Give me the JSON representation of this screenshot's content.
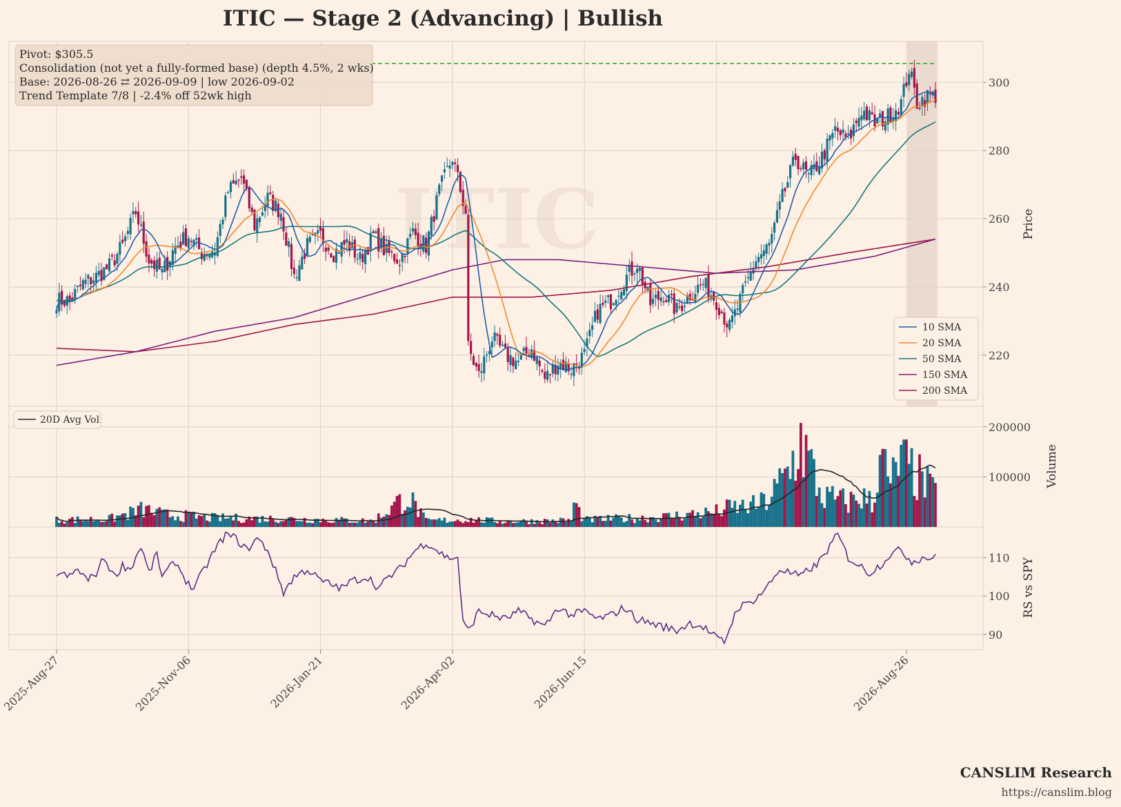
{
  "title": "ITIC  —  Stage 2 (Advancing)  |  Bullish",
  "watermark": "ITIC",
  "info_box": {
    "lines": [
      "Pivot: $305.5",
      "Consolidation (not yet a fully-formed base)  (depth 4.5%, 2 wks)",
      "Base: 2026-08-26 ⇄ 2026-09-09  |  low 2026-09-02",
      "Trend Template 7/8  |  -2.4% off 52wk high"
    ]
  },
  "footer": {
    "brand": "CANSLIM Research",
    "url": "https://canslim.blog"
  },
  "colors": {
    "background": "#fdf1e6",
    "grid": "#e3d5c8",
    "up_candle": "#17718a",
    "down_candle": "#a3164a",
    "sma10": "#1f5ea8",
    "sma20": "#f0892e",
    "sma50": "#14777a",
    "sma150": "#7b1d7e",
    "sma200": "#9a1542",
    "pivot_line": "#2ca02c",
    "rs_line": "#5a2d82",
    "avg_vol": "#222222",
    "base_shade": "#e4d3c6"
  },
  "chart_data": [
    {
      "type": "candlestick",
      "panel": "price",
      "ylabel": "Price",
      "yticks": [
        220,
        240,
        260,
        280,
        300
      ],
      "ylim": [
        205,
        312
      ],
      "x_tick_labels": [
        "2025-Aug-27",
        "2025-Nov-06",
        "2026-Jan-21",
        "2026-Apr-02",
        "2026-Jun-15",
        "2026-Aug-26"
      ],
      "pivot": 305.5,
      "base_window": [
        "2026-08-26",
        "2026-09-09"
      ],
      "legend": [
        "10 SMA",
        "20 SMA",
        "50 SMA",
        "150 SMA",
        "200 SMA"
      ],
      "close_anchors": [
        [
          0,
          236
        ],
        [
          5,
          236
        ],
        [
          10,
          241
        ],
        [
          15,
          243
        ],
        [
          20,
          246
        ],
        [
          25,
          252
        ],
        [
          30,
          262
        ],
        [
          35,
          248
        ],
        [
          40,
          244
        ],
        [
          45,
          252
        ],
        [
          50,
          255
        ],
        [
          55,
          250
        ],
        [
          60,
          251
        ],
        [
          65,
          268
        ],
        [
          70,
          272
        ],
        [
          75,
          258
        ],
        [
          80,
          266
        ],
        [
          85,
          262
        ],
        [
          90,
          243
        ],
        [
          95,
          252
        ],
        [
          100,
          255
        ],
        [
          105,
          250
        ],
        [
          110,
          253
        ],
        [
          115,
          248
        ],
        [
          120,
          255
        ],
        [
          125,
          250
        ],
        [
          130,
          248
        ],
        [
          135,
          256
        ],
        [
          140,
          252
        ],
        [
          145,
          268
        ],
        [
          150,
          278
        ],
        [
          155,
          262
        ],
        [
          156,
          222
        ],
        [
          160,
          214
        ],
        [
          165,
          225
        ],
        [
          170,
          220
        ],
        [
          175,
          218
        ],
        [
          180,
          222
        ],
        [
          185,
          213
        ],
        [
          190,
          218
        ],
        [
          195,
          216
        ],
        [
          200,
          220
        ],
        [
          205,
          233
        ],
        [
          210,
          236
        ],
        [
          215,
          242
        ],
        [
          220,
          247
        ],
        [
          225,
          235
        ],
        [
          230,
          238
        ],
        [
          235,
          233
        ],
        [
          240,
          238
        ],
        [
          245,
          241
        ],
        [
          250,
          236
        ],
        [
          255,
          228
        ],
        [
          260,
          238
        ],
        [
          265,
          248
        ],
        [
          270,
          252
        ],
        [
          275,
          266
        ],
        [
          280,
          278
        ],
        [
          285,
          272
        ],
        [
          290,
          278
        ],
        [
          295,
          286
        ],
        [
          300,
          283
        ],
        [
          305,
          292
        ],
        [
          310,
          288
        ],
        [
          315,
          290
        ],
        [
          320,
          294
        ],
        [
          323,
          304
        ],
        [
          326,
          294
        ],
        [
          330,
          296
        ],
        [
          333,
          296
        ]
      ],
      "sma150_anchors": [
        [
          0,
          217
        ],
        [
          30,
          221
        ],
        [
          60,
          227
        ],
        [
          90,
          231
        ],
        [
          120,
          238
        ],
        [
          150,
          245
        ],
        [
          170,
          248
        ],
        [
          190,
          248
        ],
        [
          220,
          246
        ],
        [
          250,
          244
        ],
        [
          280,
          245
        ],
        [
          310,
          249
        ],
        [
          333,
          254
        ]
      ],
      "sma200_anchors": [
        [
          0,
          222
        ],
        [
          30,
          221
        ],
        [
          60,
          224
        ],
        [
          90,
          229
        ],
        [
          120,
          232
        ],
        [
          150,
          237
        ],
        [
          180,
          237
        ],
        [
          210,
          239
        ],
        [
          240,
          243
        ],
        [
          270,
          246
        ],
        [
          300,
          250
        ],
        [
          333,
          254
        ]
      ]
    },
    {
      "type": "bar",
      "panel": "volume",
      "ylabel": "Volume",
      "yticks": [
        100000,
        200000
      ],
      "ylim": [
        0,
        230000
      ],
      "legend": [
        "20D Avg Vol"
      ],
      "volume_anchors": [
        [
          0,
          14000
        ],
        [
          20,
          16000
        ],
        [
          33,
          35000
        ],
        [
          40,
          25000
        ],
        [
          60,
          18000
        ],
        [
          90,
          16000
        ],
        [
          120,
          12000
        ],
        [
          133,
          62000
        ],
        [
          140,
          12000
        ],
        [
          155,
          15000
        ],
        [
          170,
          11000
        ],
        [
          195,
          13000
        ],
        [
          195,
          55000
        ],
        [
          200,
          14000
        ],
        [
          230,
          20000
        ],
        [
          250,
          30000
        ],
        [
          255,
          38000
        ],
        [
          265,
          42000
        ],
        [
          270,
          55000
        ],
        [
          278,
          115000
        ],
        [
          282,
          175000
        ],
        [
          290,
          60000
        ],
        [
          300,
          50000
        ],
        [
          305,
          60000
        ],
        [
          310,
          45000
        ],
        [
          312,
          210000
        ],
        [
          315,
          75000
        ],
        [
          320,
          130000
        ],
        [
          325,
          105000
        ],
        [
          333,
          65000
        ]
      ]
    },
    {
      "type": "line",
      "panel": "relative_strength",
      "ylabel": "RS vs SPY",
      "yticks": [
        90,
        100,
        110
      ],
      "ylim": [
        86,
        118
      ],
      "rs_anchors": [
        [
          0,
          106
        ],
        [
          5,
          105
        ],
        [
          8,
          107
        ],
        [
          12,
          104
        ],
        [
          15,
          106
        ],
        [
          18,
          110
        ],
        [
          22,
          105
        ],
        [
          25,
          108
        ],
        [
          28,
          107
        ],
        [
          32,
          113
        ],
        [
          35,
          106
        ],
        [
          38,
          111
        ],
        [
          40,
          105
        ],
        [
          45,
          109
        ],
        [
          50,
          103
        ],
        [
          52,
          102
        ],
        [
          60,
          112
        ],
        [
          64,
          116
        ],
        [
          68,
          115
        ],
        [
          72,
          112
        ],
        [
          76,
          115
        ],
        [
          80,
          112
        ],
        [
          86,
          101
        ],
        [
          90,
          105
        ],
        [
          95,
          107
        ],
        [
          100,
          104
        ],
        [
          104,
          103
        ],
        [
          108,
          102
        ],
        [
          112,
          104
        ],
        [
          118,
          105
        ],
        [
          122,
          102
        ],
        [
          126,
          105
        ],
        [
          130,
          107
        ],
        [
          136,
          112
        ],
        [
          140,
          114
        ],
        [
          144,
          112
        ],
        [
          148,
          110
        ],
        [
          152,
          110
        ],
        [
          154,
          93
        ],
        [
          156,
          91
        ],
        [
          160,
          96
        ],
        [
          165,
          95
        ],
        [
          170,
          94
        ],
        [
          175,
          96
        ],
        [
          180,
          94
        ],
        [
          185,
          92
        ],
        [
          190,
          97
        ],
        [
          195,
          95
        ],
        [
          200,
          96
        ],
        [
          205,
          94
        ],
        [
          210,
          95
        ],
        [
          215,
          97
        ],
        [
          220,
          94
        ],
        [
          225,
          93
        ],
        [
          230,
          92
        ],
        [
          235,
          91
        ],
        [
          240,
          93
        ],
        [
          245,
          92
        ],
        [
          250,
          89
        ],
        [
          253,
          88
        ],
        [
          258,
          97
        ],
        [
          262,
          98
        ],
        [
          266,
          100
        ],
        [
          270,
          103
        ],
        [
          274,
          107
        ],
        [
          278,
          106
        ],
        [
          282,
          105
        ],
        [
          285,
          107
        ],
        [
          288,
          108
        ],
        [
          292,
          112
        ],
        [
          296,
          116
        ],
        [
          300,
          110
        ],
        [
          304,
          108
        ],
        [
          308,
          106
        ],
        [
          312,
          108
        ],
        [
          316,
          111
        ],
        [
          320,
          112
        ],
        [
          324,
          109
        ],
        [
          328,
          110
        ],
        [
          333,
          110
        ]
      ]
    }
  ]
}
